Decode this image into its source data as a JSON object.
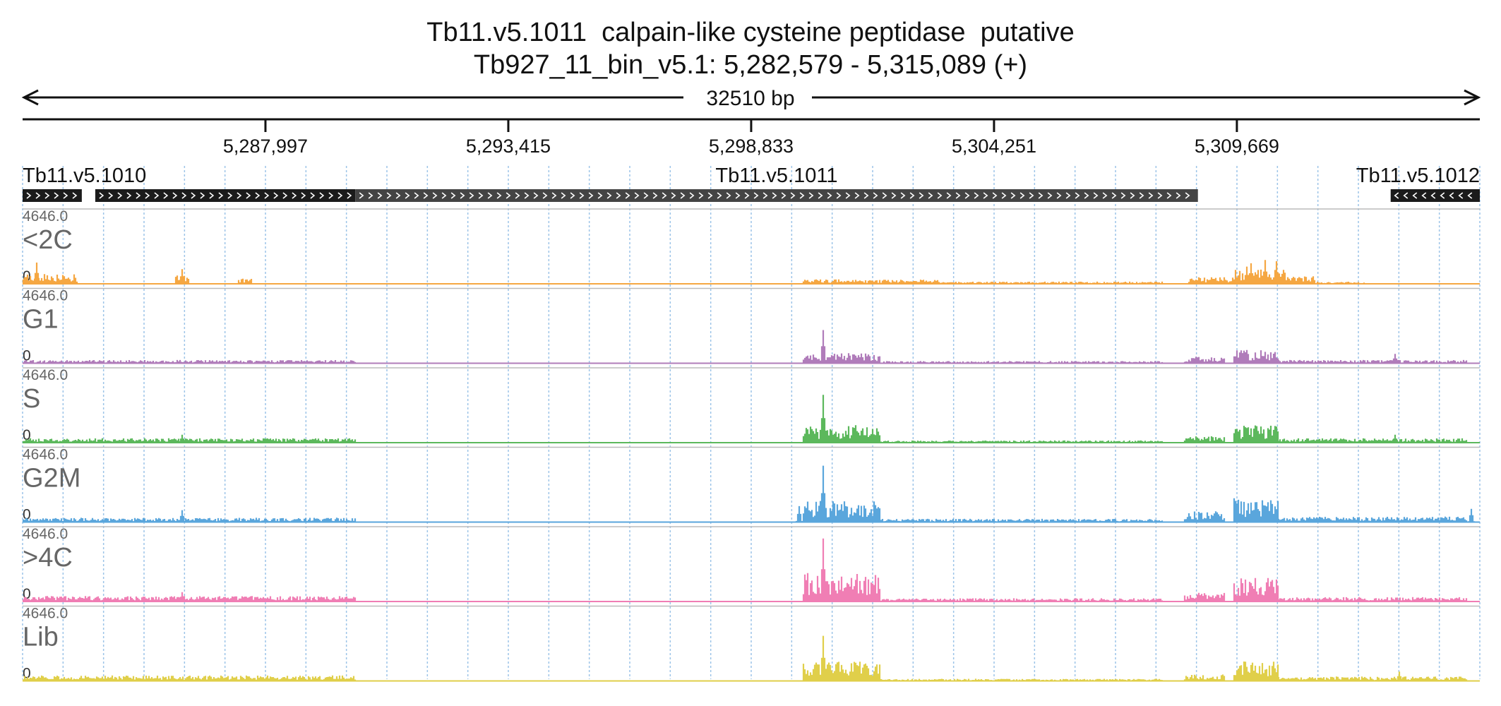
{
  "header": {
    "title": "Tb11.v5.1011  calpain-like cysteine peptidase  putative",
    "subtitle": "Tb927_11_bin_v5.1: 5,282,579 - 5,315,089 (+)"
  },
  "chart_data": {
    "type": "area",
    "region": {
      "chromosome": "Tb927_11_bin_v5.1",
      "start": 5282579,
      "end": 5315089,
      "strand": "+",
      "span_label": "32510 bp"
    },
    "axis_ticks": [
      {
        "pos": 5287997,
        "label": "5,287,997"
      },
      {
        "pos": 5293415,
        "label": "5,293,415"
      },
      {
        "pos": 5298833,
        "label": "5,298,833"
      },
      {
        "pos": 5304251,
        "label": "5,304,251"
      },
      {
        "pos": 5309669,
        "label": "5,309,669"
      }
    ],
    "grid": true,
    "genes": [
      {
        "name": "Tb11.v5.1010",
        "start": 5282579,
        "end": 5290000,
        "strand": "+",
        "label_anchor": "start",
        "color": "#1b1b1b",
        "blocks": [
          [
            5282579,
            5283900
          ],
          [
            5284200,
            5290000
          ]
        ]
      },
      {
        "name": "Tb11.v5.1011",
        "start": 5290000,
        "end": 5308800,
        "strand": "+",
        "label_anchor": "middle",
        "color": "#444444",
        "blocks": [
          [
            5290000,
            5308800
          ]
        ]
      },
      {
        "name": "Tb11.v5.1012",
        "start": 5313100,
        "end": 5315089,
        "strand": "-",
        "label_anchor": "end",
        "color": "#1b1b1b",
        "blocks": [
          [
            5313100,
            5315089
          ]
        ]
      }
    ],
    "tracks": [
      {
        "name": "<2C",
        "color": "#f5a742",
        "ymax": "4646.0",
        "ymin": "0",
        "segments": [
          [
            5282600,
            5283800,
            0.09
          ],
          [
            5286000,
            5286300,
            0.08
          ],
          [
            5287400,
            5287700,
            0.05
          ],
          [
            5300000,
            5303000,
            0.04
          ],
          [
            5303000,
            5308000,
            0.02
          ],
          [
            5308600,
            5309600,
            0.06
          ],
          [
            5309600,
            5310800,
            0.14
          ],
          [
            5310800,
            5311400,
            0.07
          ],
          [
            5311400,
            5312500,
            0.02
          ]
        ],
        "peaks": [
          [
            5282900,
            0.32
          ],
          [
            5286150,
            0.22
          ],
          [
            5310300,
            0.36
          ],
          [
            5310000,
            0.31
          ],
          [
            5310550,
            0.34
          ],
          [
            5309900,
            0.26
          ]
        ]
      },
      {
        "name": "G1",
        "color": "#b07cba",
        "ymax": "4646.0",
        "ymin": "0",
        "segments": [
          [
            5282600,
            5290000,
            0.03
          ],
          [
            5300000,
            5301700,
            0.1
          ],
          [
            5301700,
            5308000,
            0.02
          ],
          [
            5308500,
            5309400,
            0.06
          ],
          [
            5309600,
            5310600,
            0.12
          ],
          [
            5310600,
            5314800,
            0.03
          ]
        ],
        "peaks": [
          [
            5300450,
            0.5
          ],
          [
            5309900,
            0.2
          ],
          [
            5313200,
            0.14
          ]
        ]
      },
      {
        "name": "S",
        "color": "#5cb85c",
        "ymax": "4646.0",
        "ymin": "0",
        "segments": [
          [
            5282600,
            5290000,
            0.04
          ],
          [
            5300000,
            5301700,
            0.16
          ],
          [
            5301700,
            5308000,
            0.02
          ],
          [
            5308500,
            5309400,
            0.06
          ],
          [
            5309600,
            5310600,
            0.16
          ],
          [
            5310600,
            5314800,
            0.04
          ]
        ],
        "peaks": [
          [
            5300450,
            0.72
          ],
          [
            5309900,
            0.22
          ],
          [
            5313200,
            0.12
          ],
          [
            5286150,
            0.12
          ]
        ]
      },
      {
        "name": "G2M",
        "color": "#5aa6dc",
        "ymax": "4646.0",
        "ymin": "0",
        "segments": [
          [
            5282600,
            5290000,
            0.04
          ],
          [
            5300000,
            5301700,
            0.2
          ],
          [
            5301700,
            5308000,
            0.03
          ],
          [
            5308500,
            5309400,
            0.1
          ],
          [
            5309600,
            5310600,
            0.22
          ],
          [
            5310600,
            5314800,
            0.05
          ]
        ],
        "peaks": [
          [
            5300450,
            0.85
          ],
          [
            5299900,
            0.24
          ],
          [
            5310100,
            0.3
          ],
          [
            5286150,
            0.18
          ],
          [
            5314900,
            0.2
          ]
        ]
      },
      {
        "name": ">4C",
        "color": "#f07eb4",
        "ymax": "4646.0",
        "ymin": "0",
        "segments": [
          [
            5282600,
            5290000,
            0.05
          ],
          [
            5300000,
            5301700,
            0.26
          ],
          [
            5301700,
            5308000,
            0.03
          ],
          [
            5308500,
            5309400,
            0.08
          ],
          [
            5309600,
            5310600,
            0.22
          ],
          [
            5310600,
            5314800,
            0.04
          ]
        ],
        "peaks": [
          [
            5300450,
            0.95
          ],
          [
            5310000,
            0.28
          ],
          [
            5286150,
            0.14
          ]
        ]
      },
      {
        "name": "Lib",
        "color": "#e0cf4a",
        "ymax": "4646.0",
        "ymin": "0",
        "segments": [
          [
            5282600,
            5290000,
            0.05
          ],
          [
            5300000,
            5301700,
            0.18
          ],
          [
            5301700,
            5308000,
            0.02
          ],
          [
            5308500,
            5309400,
            0.06
          ],
          [
            5309600,
            5310600,
            0.2
          ],
          [
            5310600,
            5314800,
            0.04
          ]
        ],
        "peaks": [
          [
            5300450,
            0.68
          ],
          [
            5310000,
            0.24
          ],
          [
            5313300,
            0.14
          ]
        ]
      }
    ]
  }
}
